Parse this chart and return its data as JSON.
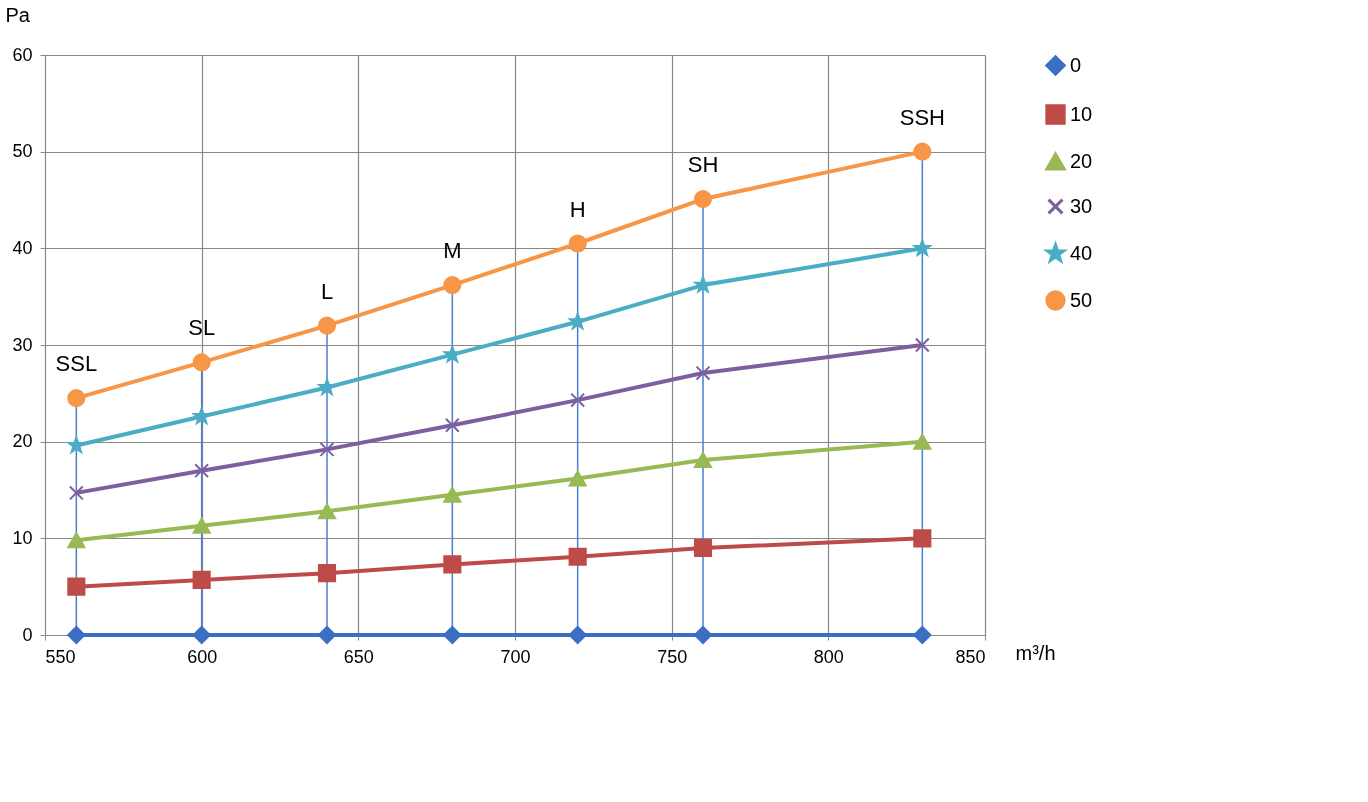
{
  "chart_data": {
    "type": "line",
    "xlabel": "m³/h",
    "ylabel": "Pa",
    "x": [
      560,
      600,
      640,
      680,
      720,
      760,
      830
    ],
    "series": [
      {
        "name": "0",
        "color": "#3a6fc4",
        "marker": "diamond",
        "values": [
          0,
          0,
          0,
          0,
          0,
          0,
          0
        ]
      },
      {
        "name": "10",
        "color": "#be4b48",
        "marker": "square",
        "values": [
          5,
          5.7,
          6.4,
          7.3,
          8.1,
          9.0,
          10
        ]
      },
      {
        "name": "20",
        "color": "#98b954",
        "marker": "triangle",
        "values": [
          9.8,
          11.3,
          12.8,
          14.5,
          16.2,
          18.1,
          20
        ]
      },
      {
        "name": "30",
        "color": "#7d5fa0",
        "marker": "cross",
        "values": [
          14.7,
          17,
          19.2,
          21.7,
          24.3,
          27.1,
          30
        ]
      },
      {
        "name": "40",
        "color": "#4bacc6",
        "marker": "star",
        "values": [
          19.6,
          22.6,
          25.6,
          29,
          32.4,
          36.2,
          40
        ]
      },
      {
        "name": "50",
        "color": "#f79646",
        "marker": "circle",
        "values": [
          24.5,
          28.2,
          32,
          36.2,
          40.5,
          45.1,
          50
        ]
      }
    ],
    "xlim": [
      550,
      850
    ],
    "xticks": [
      550,
      600,
      650,
      700,
      750,
      800,
      850
    ],
    "ylim": [
      0,
      60
    ],
    "yticks": [
      0,
      10,
      20,
      30,
      40,
      50,
      60
    ],
    "grid": true,
    "legend": "right",
    "line_style": "solid",
    "ref_lines": [
      {
        "axis": "x",
        "value": 560,
        "color": "#4a7fd0"
      },
      {
        "axis": "x",
        "value": 600,
        "color": "#4a7fd0"
      },
      {
        "axis": "x",
        "value": 640,
        "color": "#4a7fd0"
      },
      {
        "axis": "x",
        "value": 680,
        "color": "#4a7fd0"
      },
      {
        "axis": "x",
        "value": 720,
        "color": "#4a7fd0"
      },
      {
        "axis": "x",
        "value": 760,
        "color": "#4a7fd0"
      },
      {
        "axis": "x",
        "value": 830,
        "color": "#4a7fd0"
      }
    ],
    "annotations": [
      {
        "text": "SSL",
        "x": 560,
        "y": 24.5
      },
      {
        "text": "SL",
        "x": 600,
        "y": 28.2
      },
      {
        "text": "L",
        "x": 640,
        "y": 32
      },
      {
        "text": "M",
        "x": 680,
        "y": 36.2
      },
      {
        "text": "H",
        "x": 720,
        "y": 40.5
      },
      {
        "text": "SH",
        "x": 760,
        "y": 45.1
      },
      {
        "text": "SSH",
        "x": 830,
        "y": 50
      }
    ]
  }
}
